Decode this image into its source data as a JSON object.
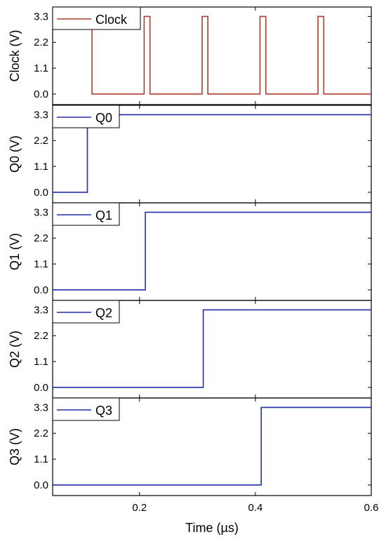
{
  "chart_data": {
    "type": "line",
    "xlabel": "Time (µs)",
    "xlim": [
      0.05,
      0.6
    ],
    "xticks": [
      "0.2",
      "0.4",
      "0.6"
    ],
    "xtick_values": [
      0.2,
      0.4,
      0.6
    ],
    "ylim": [
      -0.45,
      3.7
    ],
    "yticks": [
      "0.0",
      "1.1",
      "2.2",
      "3.3"
    ],
    "ytick_values": [
      0.0,
      1.1,
      2.2,
      3.3
    ],
    "panels": [
      {
        "ylabel": "Clock (V)",
        "series": [
          {
            "name": "Clock",
            "color": "#b03a2e",
            "x": [
              0.05,
              0.108,
              0.108,
              0.118,
              0.118,
              0.208,
              0.208,
              0.218,
              0.218,
              0.308,
              0.308,
              0.318,
              0.318,
              0.408,
              0.408,
              0.418,
              0.418,
              0.508,
              0.508,
              0.518,
              0.518,
              0.6
            ],
            "y": [
              3.3,
              3.3,
              3.3,
              3.3,
              0,
              0,
              3.3,
              3.3,
              0,
              0,
              3.3,
              3.3,
              0,
              0,
              3.3,
              3.3,
              0,
              0,
              3.3,
              3.3,
              0,
              0
            ]
          }
        ]
      },
      {
        "ylabel": "Q0 (V)",
        "series": [
          {
            "name": "Q0",
            "color": "#1f2fa8",
            "x": [
              0.05,
              0.11,
              0.11,
              0.6
            ],
            "y": [
              0,
              0,
              3.3,
              3.3
            ]
          }
        ]
      },
      {
        "ylabel": "Q1 (V)",
        "series": [
          {
            "name": "Q1",
            "color": "#1f2fa8",
            "x": [
              0.05,
              0.21,
              0.21,
              0.6
            ],
            "y": [
              0,
              0,
              3.3,
              3.3
            ]
          }
        ]
      },
      {
        "ylabel": "Q2 (V)",
        "series": [
          {
            "name": "Q2",
            "color": "#1f2fa8",
            "x": [
              0.05,
              0.31,
              0.31,
              0.6
            ],
            "y": [
              0,
              0,
              3.3,
              3.3
            ]
          }
        ]
      },
      {
        "ylabel": "Q3 (V)",
        "series": [
          {
            "name": "Q3",
            "color": "#1f2fa8",
            "x": [
              0.05,
              0.41,
              0.41,
              0.6
            ],
            "y": [
              0,
              0,
              3.3,
              3.3
            ]
          }
        ]
      }
    ]
  }
}
